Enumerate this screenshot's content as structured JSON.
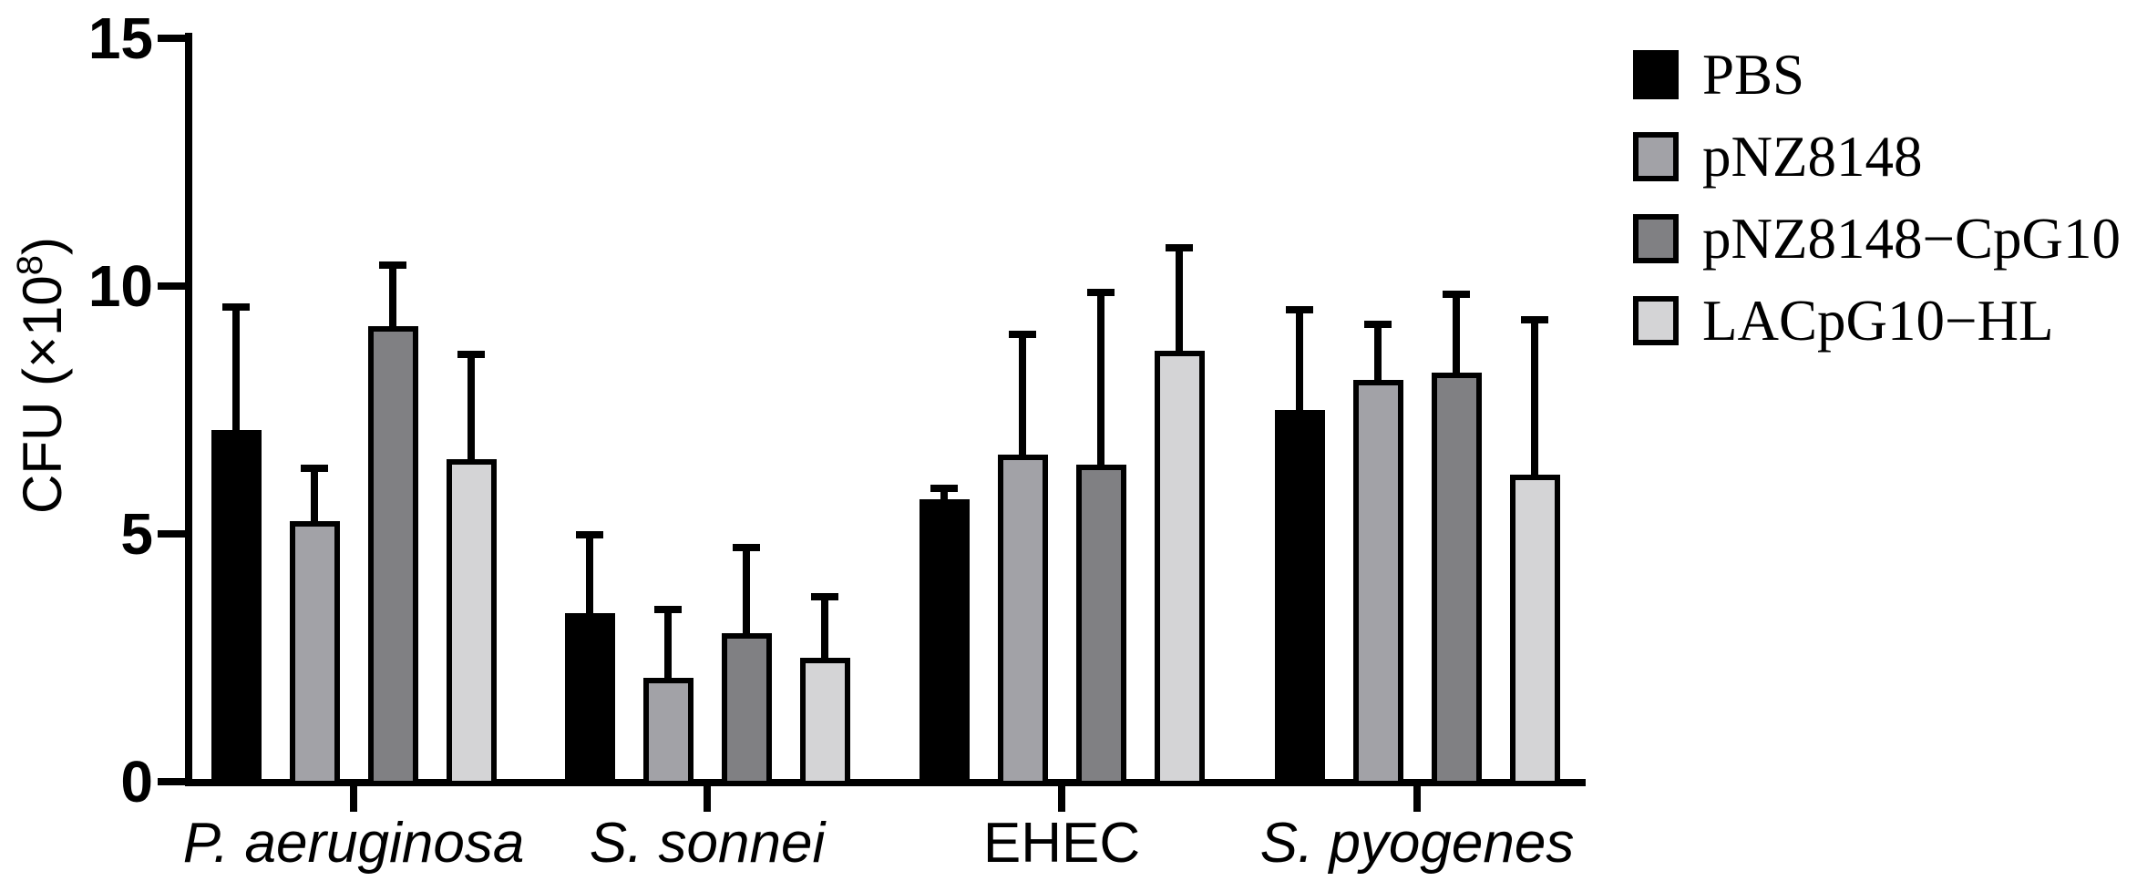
{
  "chart_data": {
    "type": "bar",
    "title": "",
    "ylabel": "CFU (×10^8)",
    "ylabel_prefix": "CFU (×10",
    "ylabel_exponent": "8",
    "ylabel_suffix": ")",
    "ylim": [
      0,
      15
    ],
    "yticks": [
      "0",
      "5",
      "10",
      "15"
    ],
    "ytick_values": [
      0,
      5,
      10,
      15
    ],
    "grid": false,
    "legend_position": "top-right",
    "error_bars": "sd-upper",
    "categories": [
      {
        "label": "P. aeruginosa",
        "italic": true
      },
      {
        "label": "S. sonnei",
        "italic": true
      },
      {
        "label": "EHEC",
        "italic": false
      },
      {
        "label": "S. pyogenes",
        "italic": true
      }
    ],
    "series": [
      {
        "name": "PBS",
        "color": "#000000",
        "values": [
          7.1,
          3.4,
          5.7,
          7.5
        ],
        "error_sd": [
          2.55,
          1.65,
          0.3,
          2.1
        ]
      },
      {
        "name": "pNZ8148",
        "color": "#A2A2A7",
        "values": [
          5.25,
          2.1,
          6.6,
          8.1
        ],
        "error_sd": [
          1.15,
          1.45,
          2.5,
          1.2
        ]
      },
      {
        "name": "pNZ8148−CpG10",
        "color": "#808083",
        "values": [
          9.2,
          3.0,
          6.4,
          8.25
        ],
        "error_sd": [
          1.3,
          1.8,
          3.55,
          1.65
        ]
      },
      {
        "name": "LACpG10−HL",
        "color": "#D4D4D6",
        "values": [
          6.5,
          2.5,
          8.7,
          6.2
        ],
        "error_sd": [
          2.2,
          1.3,
          2.15,
          3.2
        ]
      }
    ],
    "colors": {
      "axis": "#000000",
      "background": "#ffffff"
    }
  }
}
